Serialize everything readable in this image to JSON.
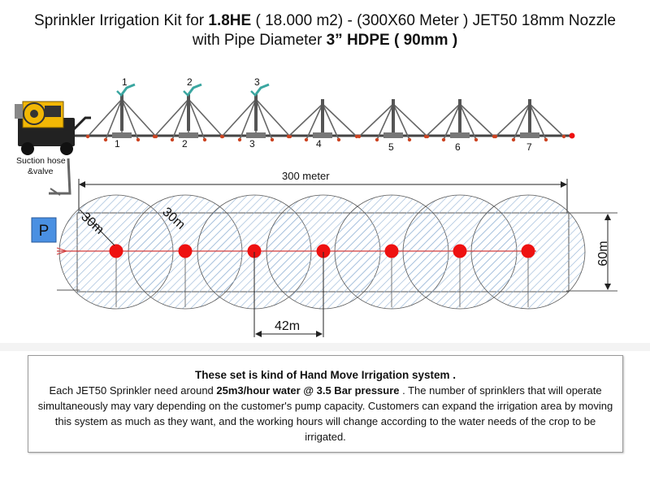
{
  "title": {
    "line1_a": "Sprinkler Irrigation Kit for ",
    "line1_b": "1.8HE",
    "line1_c": " ( 18.000 m2) - (300X60 Meter ) JET50 18mm Nozzle",
    "line2_a": "with Pipe Diameter ",
    "line2_b": "3” HDPE  ( 90mm )"
  },
  "pump": {
    "label_line1": "Suction hose",
    "label_line2": "&valve"
  },
  "sprinklers": {
    "top_numbers": [
      "1",
      "2",
      "3"
    ],
    "bottom_numbers": [
      "1",
      "2",
      "3",
      "4",
      "5",
      "6",
      "7"
    ]
  },
  "field": {
    "length_label": "300 meter",
    "width_label": "60m",
    "radius_label_1": "30m",
    "radius_label_2": "30m",
    "spacing_label": "42m",
    "pump_marker": "P",
    "sprinkler_count": 7
  },
  "description": {
    "heading": "These set is kind of Hand Move Irrigation system .",
    "p1": "Each  JET50  Sprinkler need around ",
    "p1_bold": "25m3/hour water @ 3.5 Bar pressure",
    "p1_rest": " . The number of sprinklers that will operate simultaneously may vary depending on the customer's pump capacity. Customers can expand the irrigation area by moving this system as much as they want, and the working hours will change according to the water needs of the crop to be irrigated."
  },
  "colors": {
    "sprinkler_dot": "#ee1111",
    "pipe_line": "#d43a3a",
    "hatch": "#9ab8d8",
    "pump_box": "#4a90e2",
    "machine_yellow": "#f2b705"
  }
}
